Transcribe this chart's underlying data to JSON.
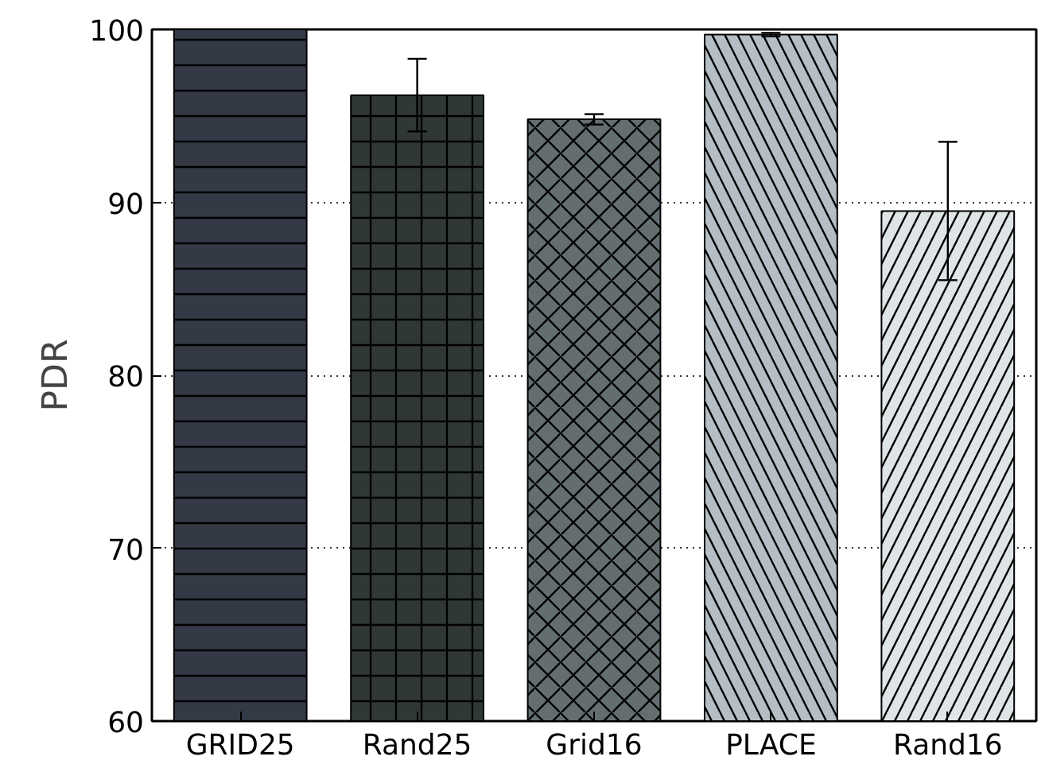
{
  "chart_data": {
    "type": "bar",
    "ylabel": "PDR",
    "categories": [
      "GRID25",
      "Rand25",
      "Grid16",
      "PLACE",
      "Rand16"
    ],
    "values": [
      100,
      96.2,
      94.8,
      99.7,
      89.5
    ],
    "errors": [
      null,
      2.1,
      0.3,
      0.1,
      4.0
    ],
    "colors": [
      "#333a45",
      "#2f3835",
      "#646e71",
      "#b4bec4",
      "#dfe4e7"
    ],
    "ylim": [
      60,
      100
    ],
    "yticks": [
      60,
      70,
      80,
      90,
      100
    ],
    "grid": "y"
  }
}
